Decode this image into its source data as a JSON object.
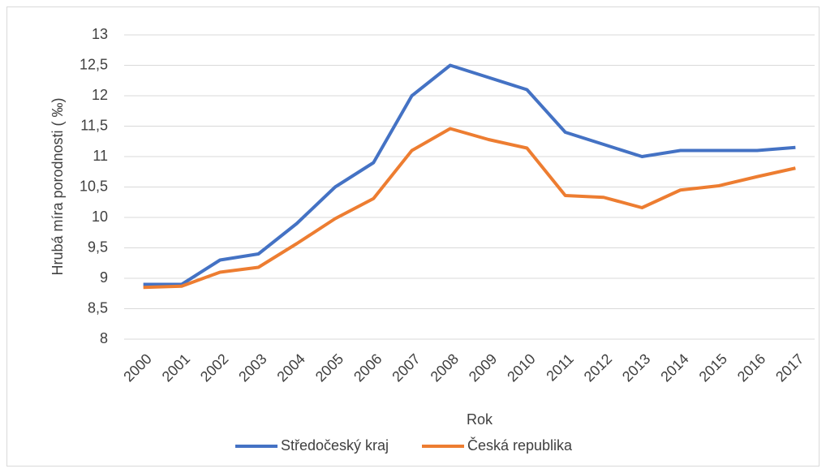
{
  "chart_data": {
    "type": "line",
    "x_label": "Rok",
    "y_label": "Hrubá míra porodnosti ( ‰)",
    "categories": [
      "2000",
      "2001",
      "2002",
      "2003",
      "2004",
      "2005",
      "2006",
      "2007",
      "2008",
      "2009",
      "2010",
      "2011",
      "2012",
      "2013",
      "2014",
      "2015",
      "2016",
      "2017"
    ],
    "series": [
      {
        "name": "Středočeský kraj",
        "color": "#4472c4",
        "values": [
          8.9,
          8.9,
          9.3,
          9.4,
          9.9,
          10.5,
          10.9,
          12.0,
          12.5,
          12.3,
          12.1,
          11.4,
          11.2,
          11.0,
          11.1,
          11.1,
          11.1,
          11.15
        ]
      },
      {
        "name": "Česká republika",
        "color": "#ed7d31",
        "values": [
          8.85,
          8.87,
          9.1,
          9.18,
          9.57,
          9.98,
          10.31,
          11.1,
          11.46,
          11.28,
          11.14,
          10.36,
          10.33,
          10.16,
          10.45,
          10.52,
          10.67,
          10.81
        ]
      }
    ],
    "ylim": [
      8,
      13
    ],
    "yticks": [
      8,
      {
        "value": 8.5,
        "label": "8,5"
      },
      9,
      {
        "value": 9.5,
        "label": "9,5"
      },
      10,
      {
        "value": 10.5,
        "label": "10,5"
      },
      11,
      {
        "value": 11.5,
        "label": "11,5"
      },
      12,
      {
        "value": 12.5,
        "label": "12,5"
      },
      13
    ],
    "grid": true,
    "legend": "bottom"
  }
}
